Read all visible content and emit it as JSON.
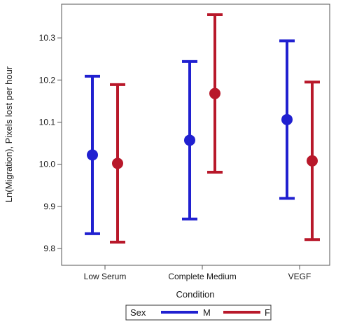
{
  "chart_data": {
    "type": "scatter",
    "subtype": "dot-with-error-bars",
    "xlabel": "Condition",
    "ylabel": "Ln(Migration), Pixels lost per hour",
    "categories": [
      "Low Serum",
      "Complete Medium",
      "VEGF"
    ],
    "ylim": [
      9.76,
      10.38
    ],
    "yticks": [
      "9.8",
      "9.9",
      "10.0",
      "10.1",
      "10.2",
      "10.3"
    ],
    "grid": false,
    "legend": {
      "title": "Sex",
      "placement": "bottom"
    },
    "series": [
      {
        "name": "M",
        "color": "#2020d0",
        "values": [
          10.022,
          10.057,
          10.106
        ],
        "lower": [
          9.835,
          9.87,
          9.919
        ],
        "upper": [
          10.209,
          10.244,
          10.293
        ]
      },
      {
        "name": "F",
        "color": "#b8182a",
        "values": [
          10.002,
          10.168,
          10.008
        ],
        "lower": [
          9.815,
          9.981,
          9.821
        ],
        "upper": [
          10.189,
          10.355,
          10.195
        ]
      }
    ]
  }
}
